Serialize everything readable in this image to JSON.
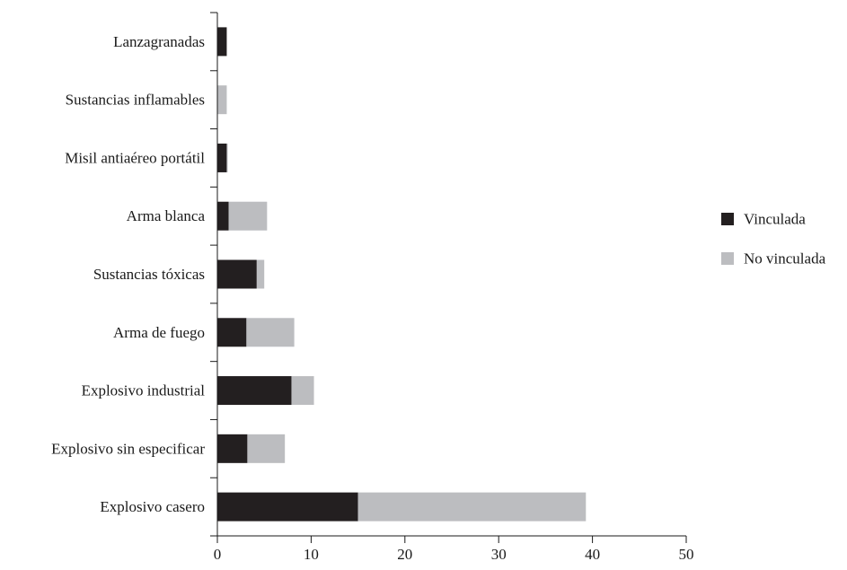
{
  "chart_data": {
    "type": "bar",
    "orientation": "horizontal",
    "stacked": true,
    "title": "",
    "xlabel": "",
    "ylabel": "",
    "categories": [
      "Lanzagranadas",
      "Sustancias inflamables",
      "Misil antiaéreo portátil",
      "Arma blanca",
      "Sustancias tóxicas",
      "Arma de fuego",
      "Explosivo industrial",
      "Explosivo sin especificar",
      "Explosivo casero"
    ],
    "series": [
      {
        "name": "Vinculada",
        "color": "#231f20",
        "values": [
          1,
          0,
          1,
          1.2,
          4.2,
          3.1,
          7.9,
          3.2,
          15
        ]
      },
      {
        "name": "No vinculada",
        "color": "#bcbdc0",
        "values": [
          0,
          1,
          0.1,
          4.1,
          0.8,
          5.1,
          2.4,
          4.0,
          24.3
        ]
      }
    ],
    "xlim": [
      0,
      50
    ],
    "xticks": [
      0,
      10,
      20,
      30,
      40,
      50
    ],
    "grid": false,
    "legend": "right"
  }
}
